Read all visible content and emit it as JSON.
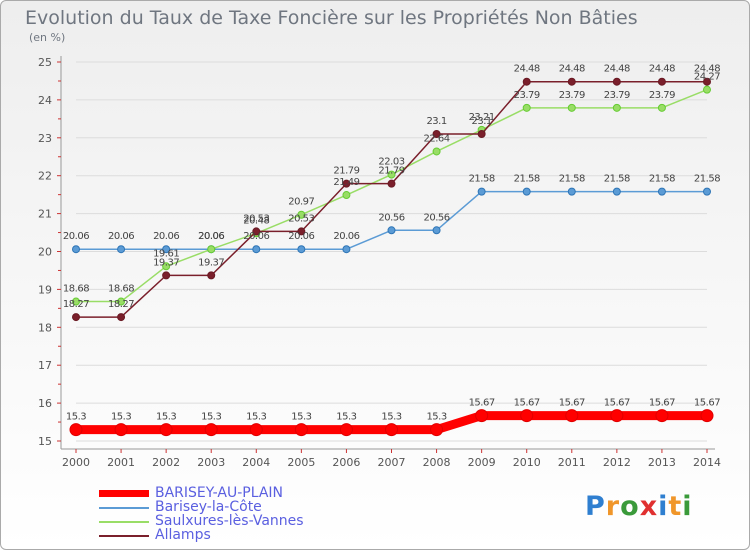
{
  "colors": {
    "title": "#6f7680",
    "legend_text": "#5a5fe0",
    "grid": "#dcdcdc"
  },
  "logo": {
    "letters": [
      {
        "char": "P",
        "color": "#2f7fd0"
      },
      {
        "char": "r",
        "color": "#f0962a"
      },
      {
        "char": "o",
        "color": "#3a9a3a"
      },
      {
        "char": "x",
        "color": "#e03030"
      },
      {
        "char": "i",
        "color": "#2f7fd0"
      },
      {
        "char": "t",
        "color": "#f0962a"
      },
      {
        "char": "i",
        "color": "#3a9a3a"
      }
    ]
  },
  "chart_data": {
    "type": "line",
    "title": "Evolution du Taux de Taxe Foncière sur les Propriétés Non Bâties",
    "ylabel": "(en %)",
    "xlabel": "",
    "ylim": [
      15,
      25
    ],
    "yticks": [
      "15",
      "16",
      "17",
      "18",
      "19",
      "20",
      "21",
      "22",
      "23",
      "24",
      "25"
    ],
    "categories": [
      "2000",
      "2001",
      "2002",
      "2003",
      "2004",
      "2005",
      "2006",
      "2007",
      "2008",
      "2009",
      "2010",
      "2011",
      "2012",
      "2013",
      "2014"
    ],
    "series": [
      {
        "name": "BARISEY-AU-PLAIN",
        "color": "#ff0000",
        "marker": "#e00000",
        "values": [
          15.3,
          15.3,
          15.3,
          15.3,
          15.3,
          15.3,
          15.3,
          15.3,
          15.3,
          15.67,
          15.67,
          15.67,
          15.67,
          15.67,
          15.67
        ],
        "labels": [
          "15.3",
          "15.3",
          "15.3",
          "15.3",
          "15.3",
          "15.3",
          "15.3",
          "15.3",
          "15.3",
          "15.67",
          "15.67",
          "15.67",
          "15.67",
          "15.67",
          "15.67"
        ]
      },
      {
        "name": "Barisey-la-Côte",
        "color": "#5b9bd5",
        "marker": "#2e75b6",
        "values": [
          20.06,
          20.06,
          20.06,
          20.06,
          20.06,
          20.06,
          20.06,
          20.56,
          20.56,
          21.58,
          21.58,
          21.58,
          21.58,
          21.58,
          21.58
        ],
        "labels": [
          "20.06",
          "20.06",
          "20.06",
          "20.06",
          "20.06",
          "20.06",
          "20.06",
          "20.56",
          "20.56",
          "21.58",
          "21.58",
          "21.58",
          "21.58",
          "21.58",
          "21.58"
        ]
      },
      {
        "name": "Saulxures-lès-Vannes",
        "color": "#99dd66",
        "marker": "#66cc33",
        "values": [
          18.68,
          18.68,
          19.61,
          20.06,
          20.48,
          20.97,
          21.49,
          22.03,
          22.64,
          23.21,
          23.79,
          23.79,
          23.79,
          23.79,
          24.27
        ],
        "labels": [
          "18.68",
          "18.68",
          "19.61",
          "20.06",
          "20.48",
          "20.97",
          "21.49",
          "22.03",
          "22.64",
          "23.21",
          "23.79",
          "23.79",
          "23.79",
          "23.79",
          "24.27"
        ]
      },
      {
        "name": "Allamps",
        "color": "#7a1f2b",
        "marker": "#6a1a24",
        "values": [
          18.27,
          18.27,
          19.37,
          19.37,
          20.53,
          20.53,
          21.79,
          21.79,
          23.1,
          23.1,
          24.48,
          24.48,
          24.48,
          24.48,
          24.48
        ],
        "labels": [
          "18.27",
          "18.27",
          "19.37",
          "19.37",
          "20.53",
          "20.53",
          "21.79",
          "21.79",
          "23.1",
          "23.1",
          "24.48",
          "24.48",
          "24.48",
          "24.48",
          "24.48"
        ]
      }
    ]
  }
}
